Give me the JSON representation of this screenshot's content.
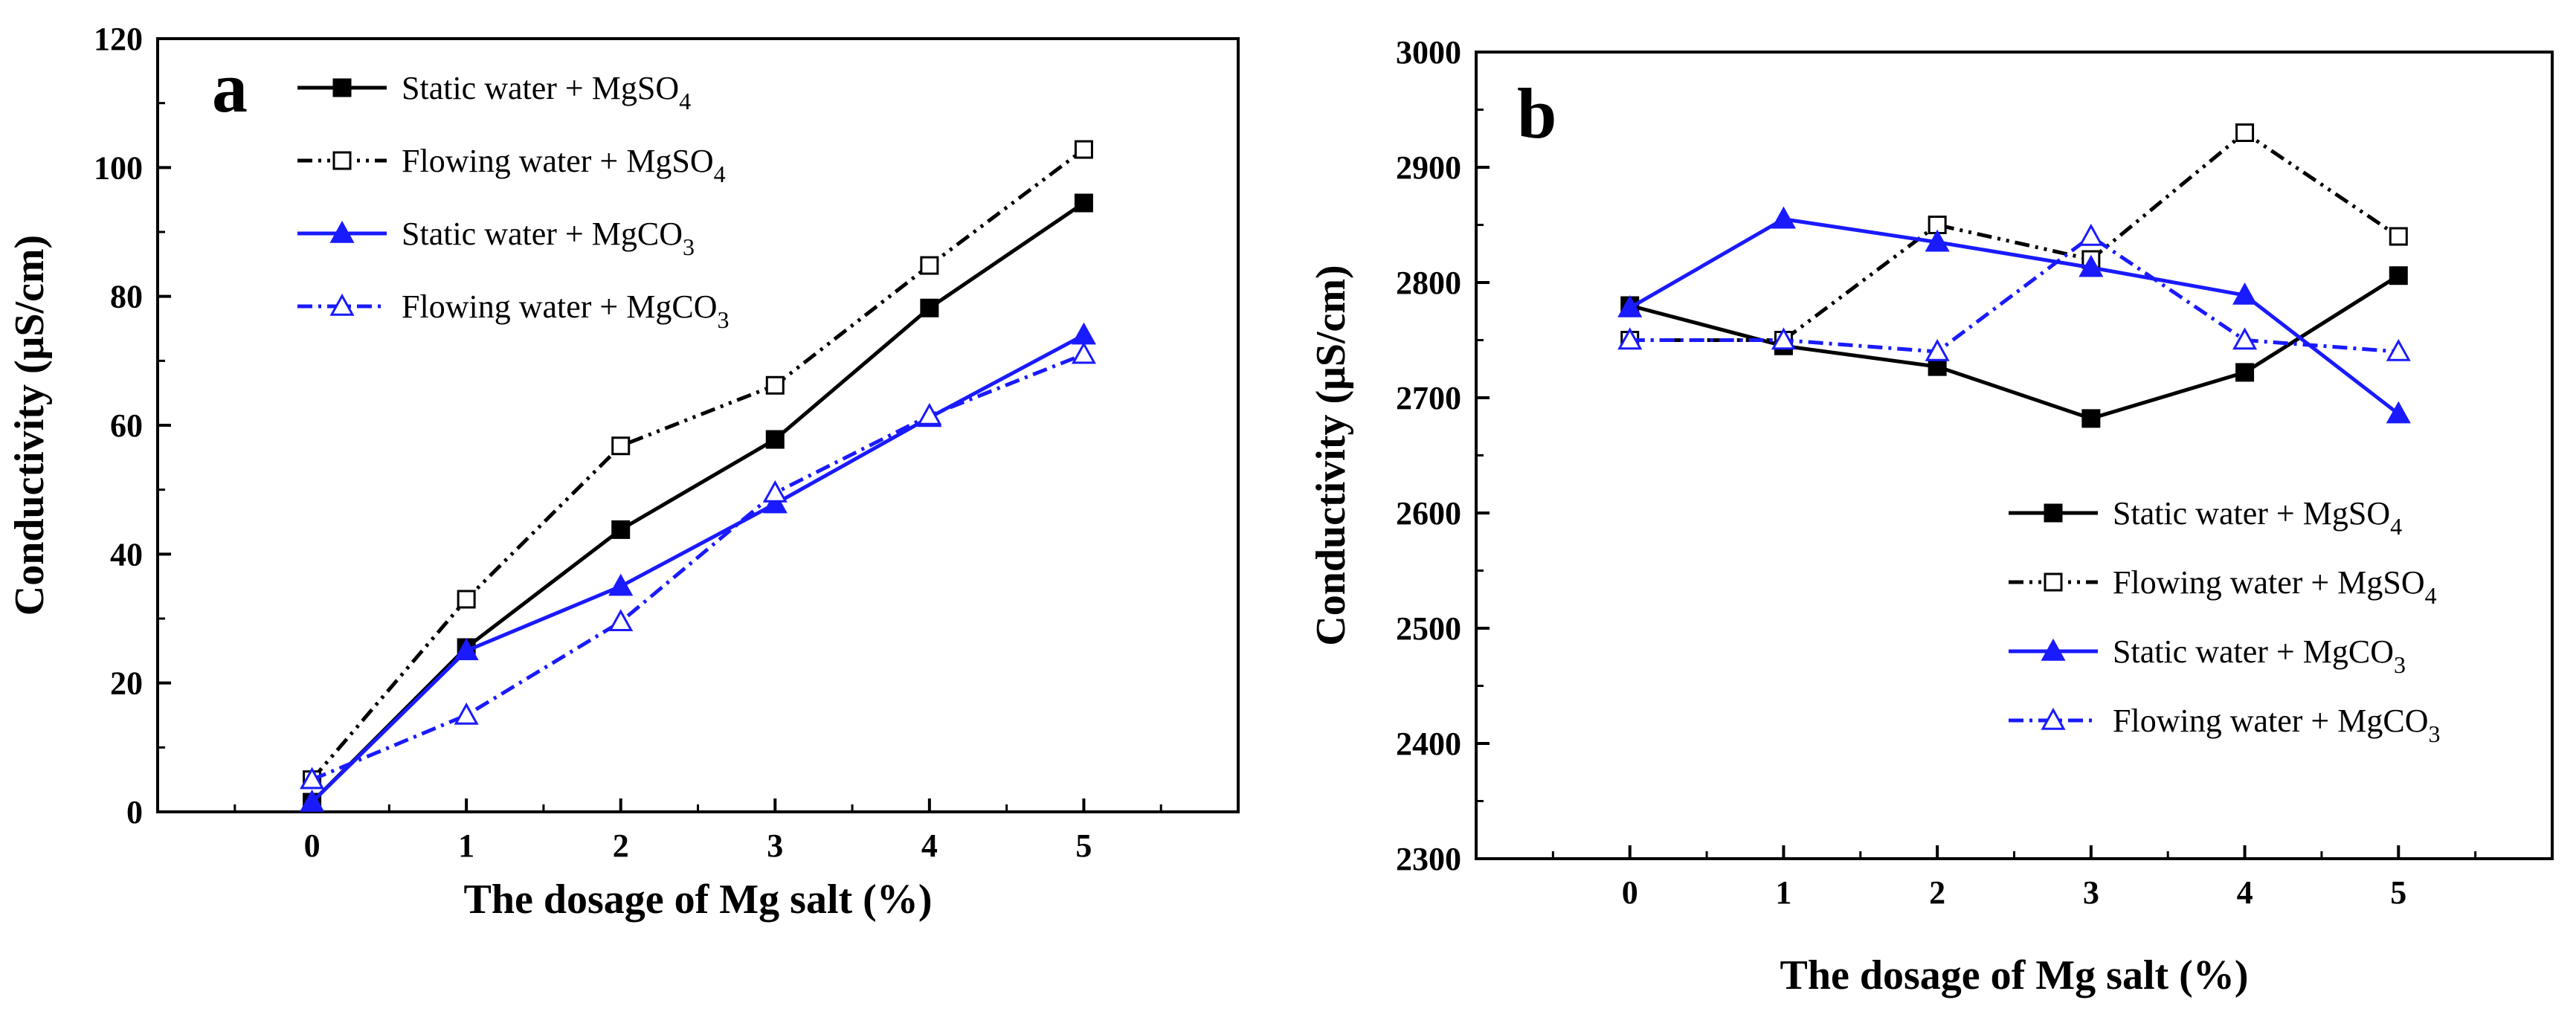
{
  "chart_data": [
    {
      "type": "line",
      "panel_label": "a",
      "x": [
        0,
        1,
        2,
        3,
        4,
        5
      ],
      "xlabel": "The dosage of Mg salt (%)",
      "ylabel": "Conductivity (μS/cm)",
      "xlim": [
        -1,
        6
      ],
      "ylim": [
        0,
        120
      ],
      "xticks": [
        "0",
        "1",
        "2",
        "3",
        "4",
        "5"
      ],
      "yticks": [
        "0",
        "20",
        "40",
        "60",
        "80",
        "100",
        "120"
      ],
      "legend_position": "top-left",
      "series": [
        {
          "name": "Static water + MgSO",
          "subscript": "4",
          "color": "#000000",
          "line": "solid",
          "marker": "filled-square",
          "values": [
            1.5,
            25.5,
            43.8,
            57.8,
            78.2,
            94.5
          ]
        },
        {
          "name": "Flowing water + MgSO",
          "subscript": "4",
          "color": "#000000",
          "line": "dash-dot-dot",
          "marker": "open-square",
          "values": [
            5.0,
            33.0,
            56.8,
            66.2,
            84.8,
            102.8
          ]
        },
        {
          "name": "Static water + MgCO",
          "subscript": "3",
          "color": "#1a1aff",
          "line": "solid",
          "marker": "filled-triangle",
          "values": [
            1.5,
            25.0,
            35.0,
            47.8,
            61.2,
            74.0
          ]
        },
        {
          "name": "Flowing water + MgCO",
          "subscript": "3",
          "color": "#1a1aff",
          "line": "dash-dot",
          "marker": "open-triangle",
          "values": [
            5.0,
            15.0,
            29.5,
            49.5,
            61.5,
            71.0
          ]
        }
      ]
    },
    {
      "type": "line",
      "panel_label": "b",
      "x": [
        0,
        1,
        2,
        3,
        4,
        5
      ],
      "xlabel": "The dosage of Mg salt (%)",
      "ylabel": "Conductivity (μS/cm)",
      "xlim": [
        -1,
        6
      ],
      "ylim": [
        2300,
        3000
      ],
      "xticks": [
        "0",
        "1",
        "2",
        "3",
        "4",
        "5"
      ],
      "yticks": [
        "2300",
        "2400",
        "2500",
        "2600",
        "2700",
        "2800",
        "2900",
        "3000"
      ],
      "legend_position": "bottom-right",
      "series": [
        {
          "name": "Static water + MgSO",
          "subscript": "4",
          "color": "#000000",
          "line": "solid",
          "marker": "filled-square",
          "values": [
            2780,
            2745,
            2727,
            2682,
            2722,
            2806
          ]
        },
        {
          "name": "Flowing water + MgSO",
          "subscript": "4",
          "color": "#000000",
          "line": "dash-dot-dot",
          "marker": "open-square",
          "values": [
            2750,
            2750,
            2850,
            2820,
            2930,
            2840
          ]
        },
        {
          "name": "Static water + MgCO",
          "subscript": "3",
          "color": "#1a1aff",
          "line": "solid",
          "marker": "filled-triangle",
          "values": [
            2778,
            2855,
            2835,
            2813,
            2789,
            2686
          ]
        },
        {
          "name": "Flowing water + MgCO",
          "subscript": "3",
          "color": "#1a1aff",
          "line": "dash-dot",
          "marker": "open-triangle",
          "values": [
            2750,
            2750,
            2740,
            2840,
            2750,
            2740
          ]
        }
      ]
    }
  ]
}
